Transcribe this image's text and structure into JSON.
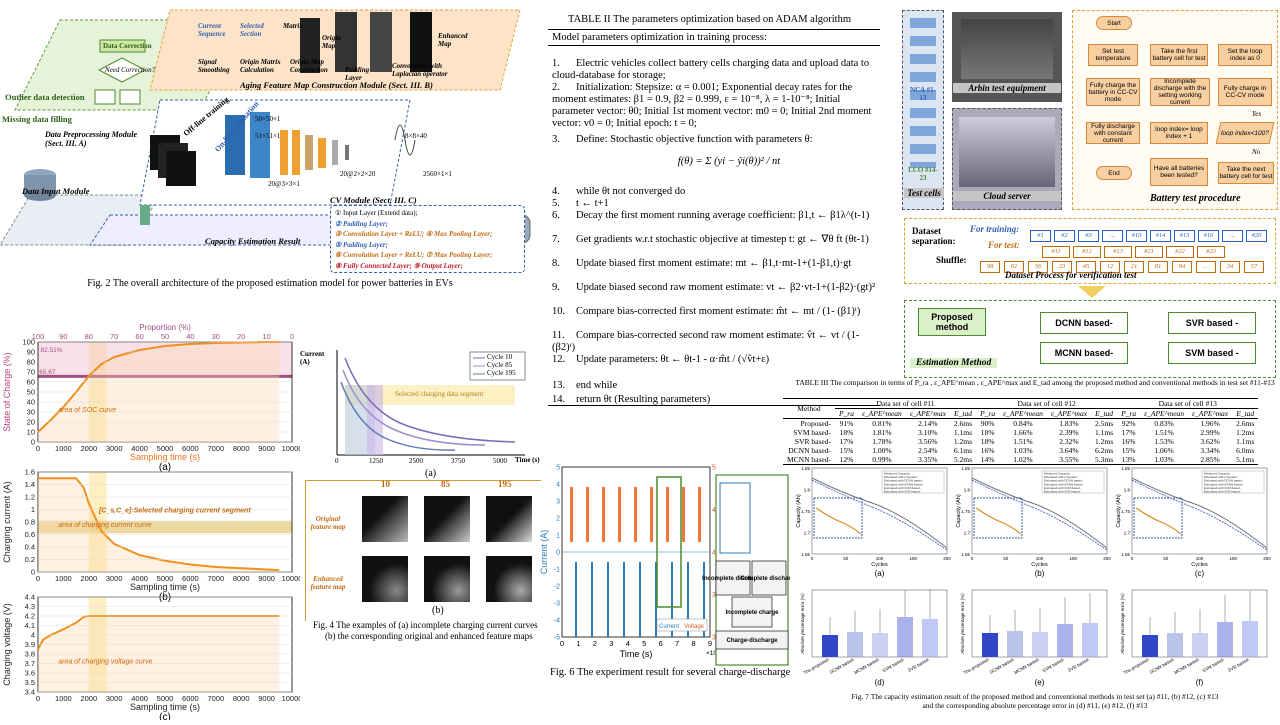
{
  "fig2": {
    "caption": "Fig. 2 The overall architecture of the proposed estimation model for power batteries in EVs",
    "labels": {
      "data_correction": "Data Correction",
      "need_correction": "Need Correction?",
      "y": "Y",
      "n": "N",
      "outlier": "Outlier data detection",
      "missing": "Missing data filling",
      "preprocess": "Data Preprocessing Module (Sect. III. A)",
      "input": "Data Input Module",
      "aging": "Aging Feature Map Construction Module (Sect. III. B)",
      "cv": "CV Module (Sect. III. C)",
      "capacity": "Capacity Estimation Result",
      "offline": "Off-line training",
      "online": "On-line estimation",
      "current_seq": "Current Sequence",
      "selected_sec": "Selected Section",
      "matrix": "Matrix",
      "origin_map": "Origin Map",
      "enhanced_map": "Enhanced Map",
      "signal_smooth": "Signal Smoothing",
      "origin_calc": "Origin Matrix Calculation",
      "origin_map_con": "Origin Map Construction",
      "padding": "Padding Layer",
      "conv_lap": "Convolution with Laplacian operator",
      "dim1": "50×50×1",
      "dim2": "51×51×1",
      "dim3": "20@3×3×1",
      "dim4": "20@2×2×20",
      "dim5": "8×8×40",
      "dim6": "2560×1×1"
    },
    "legend": [
      "① Input Layer (Extend data);",
      "② Padding Layer;",
      "③ Convolution Layer + ReLU;   ④ Max Pooling Layer;",
      "⑤ Padding Layer;",
      "⑥ Convolution Layer + ReLU;   ⑦ Max Pooling Layer;",
      "⑧ Fully Connected Layer;   ⑨ Output Layer;"
    ]
  },
  "fig3": {
    "sub_a": {
      "ylabel": "State of Charge (%)",
      "xlabel": "Sampling time (s)",
      "top_axis": "Proportion (%)",
      "annot1": "82.51%",
      "annot2": "65.67",
      "area": "area of SOC curve",
      "caption": "(a)"
    },
    "sub_b": {
      "ylabel": "Charging current (A)",
      "xlabel": "Sampling time (s)",
      "annot": "[C_s,C_e]:Selected charging current segment",
      "area": "area of charging current curve",
      "caption": "(b)"
    },
    "sub_c": {
      "ylabel": "Charging voltage (V)",
      "xlabel": "Sampling time (s)",
      "area": "area of charging voltage curve",
      "caption": "(c)"
    }
  },
  "chart_data": [
    {
      "type": "line",
      "title": "",
      "xlabel": "Sampling time (s)",
      "ylabel": "State of Charge (%)",
      "xlim": [
        0,
        10000
      ],
      "ylim": [
        0,
        100
      ],
      "x": [
        0,
        500,
        1000,
        1500,
        2000,
        2500,
        3000,
        4000,
        5000,
        6000,
        7000,
        8000,
        9000,
        9500
      ],
      "series": [
        {
          "values": [
            10,
            22,
            35,
            50,
            66,
            78,
            85,
            92,
            96,
            98,
            99,
            99.5,
            100,
            100
          ]
        }
      ],
      "xticks": [
        0,
        1000,
        2000,
        3000,
        4000,
        5000,
        6000,
        7000,
        8000,
        9000,
        10000
      ],
      "yticks": [
        0,
        10,
        20,
        30,
        40,
        50,
        60,
        70,
        80,
        90,
        100
      ],
      "top_ticks": [
        100,
        90,
        80,
        70,
        60,
        50,
        40,
        30,
        20,
        10,
        0
      ]
    },
    {
      "type": "line",
      "title": "",
      "xlabel": "Sampling time (s)",
      "ylabel": "Charging current (A)",
      "xlim": [
        0,
        10000
      ],
      "ylim": [
        0,
        1.6
      ],
      "x": [
        0,
        1500,
        1800,
        2000,
        2500,
        3000,
        4000,
        5000,
        6000,
        7000,
        8000,
        9000,
        9500
      ],
      "series": [
        {
          "values": [
            1.5,
            1.5,
            1.35,
            1.1,
            0.65,
            0.45,
            0.27,
            0.18,
            0.12,
            0.08,
            0.06,
            0.04,
            0.03
          ]
        }
      ],
      "xticks": [
        0,
        1000,
        2000,
        3000,
        4000,
        5000,
        6000,
        7000,
        8000,
        9000,
        10000
      ],
      "yticks": [
        0,
        0.2,
        0.4,
        0.6,
        0.8,
        1,
        1.2,
        1.4,
        1.6
      ]
    },
    {
      "type": "line",
      "title": "",
      "xlabel": "Sampling time (s)",
      "ylabel": "Charging voltage (V)",
      "xlim": [
        0,
        10000
      ],
      "ylim": [
        3.4,
        4.4
      ],
      "x": [
        0,
        200,
        500,
        1000,
        1500,
        1800,
        2000,
        3000,
        5000,
        7000,
        9500
      ],
      "series": [
        {
          "values": [
            3.85,
            3.95,
            4.0,
            4.06,
            4.13,
            4.19,
            4.2,
            4.2,
            4.2,
            4.2,
            4.2
          ]
        }
      ],
      "xticks": [
        0,
        1000,
        2000,
        3000,
        4000,
        5000,
        6000,
        7000,
        8000,
        9000,
        10000
      ],
      "yticks": [
        3.4,
        3.5,
        3.6,
        3.7,
        3.8,
        3.9,
        4.0,
        4.1,
        4.2,
        4.3,
        4.4
      ]
    },
    {
      "type": "line",
      "title": "",
      "xlabel": "Time (s)",
      "ylabel": "Current (A)",
      "xticks": [
        0,
        1250,
        2500,
        3750,
        5000
      ],
      "legend": [
        "Cycle 10",
        "Cycle 85",
        "Cycle 195"
      ],
      "annot": "Selected charging data segment"
    },
    {
      "type": "table",
      "title": "TABLE III The comparison in terms of P_ra, ε_APE^mean, ε_APE^max and E_tad among the proposed method and conventional methods in test set #11-#13",
      "columns": [
        "Method",
        "P_ra",
        "ε_APE^mean",
        "ε_APE^max",
        "E_tad"
      ],
      "groups": [
        "Data set of cell #11",
        "Data set of cell #12",
        "Data set of cell #13"
      ]
    }
  ],
  "fig4": {
    "caption1": "Fig. 4 The examples of (a) incomplete charging current curves",
    "caption2": "(b) the corresponding original and enhanced feature maps",
    "sub_a": "(a)",
    "sub_b": "(b)",
    "cols": [
      "10",
      "85",
      "195"
    ],
    "row1": "Original feature map",
    "row2": "Enhanced feature map",
    "cur_label": "Current (A)",
    "time_label": "Time (s)"
  },
  "table2": {
    "title": "TABLE II The parameters optimization based on ADAM algorithm",
    "header": "Model parameters optimization in training process:",
    "lines": [
      {
        "n": "1.",
        "t": "Electric vehicles collect battery cells charging data and upload data to cloud-database for storage;"
      },
      {
        "n": "2.",
        "t": "Initialization: Stepsize: α = 0.001; Exponential decay rates for the moment estimates: β1 = 0.9, β2 = 0.999, ε = 10⁻⁸, λ = 1-10⁻⁸; Initial parameter vector: θ0; Initial 1st moment vector: m0 = 0; Initial 2nd moment vector: v0 = 0; Initial epoch: t = 0;"
      },
      {
        "n": "3.",
        "t": "Define:   Stochastic objective function with parameters θ:"
      },
      {
        "n": "",
        "t": "f(θ) = Σ (yi − ŷi(θ))² / nt"
      },
      {
        "n": "4.",
        "t": "while θt not converged do"
      },
      {
        "n": "5.",
        "t": "t ← t+1"
      },
      {
        "n": "6.",
        "t": "Decay the first moment running average coefficient: β1,t ← β1λ^(t-1)"
      },
      {
        "n": "7.",
        "t": "Get gradients w.r.t stochastic objective at timestep t: gt ← ∇θ ft (θt-1)"
      },
      {
        "n": "8.",
        "t": "Update biased first moment estimate: mt ← β1,t·mt-1+(1-β1,t)·gt"
      },
      {
        "n": "9.",
        "t": "Update biased second raw moment estimate: vt ← β2·vt-1+(1-β2)·(gt)²"
      },
      {
        "n": "10.",
        "t": "Compare bias-corrected first moment estimate: m̂t ← mt / (1- (β1)ᵗ)"
      },
      {
        "n": "11.",
        "t": "Compare bias-corrected second raw moment estimate: v̂t ← vt / (1- (β2)ᵗ)"
      },
      {
        "n": "12.",
        "t": "Update parameters: θt ← θt-1 - α·m̂t / (√v̂t+ε)"
      },
      {
        "n": "13.",
        "t": "end while"
      },
      {
        "n": "14.",
        "t": "return θt (Resulting parameters)"
      }
    ]
  },
  "fig5": {
    "test_cells": "Test cells",
    "nca": "NCA #1-13",
    "lco": "LCO #14-23",
    "arbin": "Arbin test equipment",
    "cloud": "Cloud server",
    "procedure": "Battery test procedure",
    "flow": {
      "start": "Start",
      "set_temp": "Set test temperature",
      "take_first": "Take the first battery cell for test",
      "set_loop": "Set the loop index as 0",
      "fully_charge_cc": "Fully charge the battery in CC-CV mode",
      "incomplete": "Incomplete discharge with the setting working current",
      "fully_charge2": "Fully charge in CC-CV mode",
      "fully_discharge": "Fully discharge with constant current",
      "loop_inc": "loop index= loop index + 1",
      "loop_check": "loop index<100?",
      "all_tested": "Have all batteries been tested?",
      "take_next": "Take the next battery cell for test",
      "end": "End",
      "yes": "Yes",
      "no": "No"
    },
    "dataset_sep": "Dataset separation:",
    "for_training": "For training:",
    "for_test": "For test:",
    "shuffle": "Shuffle:",
    "train_cells": [
      "#1",
      "#2",
      "#3",
      "…",
      "#10",
      "#14",
      "#15",
      "#16",
      "…",
      "#20"
    ],
    "test_cells_list": [
      "#11",
      "#12",
      "#13",
      "#21",
      "#22",
      "#23"
    ],
    "shuffle_cells": [
      "98",
      "62",
      "56",
      "23",
      "45",
      "12",
      "21",
      "81",
      "94",
      "…",
      "34",
      "57"
    ],
    "dataset_process": "Dataset Process for verification test",
    "methods": [
      "Proposed method",
      "DCNN based-",
      "SVR based -",
      "MCNN based-",
      "SVM based -"
    ],
    "estimation": "Estimation Method"
  },
  "fig6": {
    "caption": "Fig. 6 The experiment result for several charge-discharge cycle",
    "ylabel_l": "Current (A)",
    "ylabel_r": "Voltage (V)",
    "xlabel": "Time (s)",
    "x_exp": "×10⁴",
    "xticks": [
      "0",
      "1",
      "2",
      "3",
      "4",
      "5",
      "6",
      "7",
      "8",
      "9"
    ],
    "yticks_l": [
      "-5",
      "-4",
      "-3",
      "-2",
      "-1",
      "0",
      "1",
      "2",
      "3",
      "4",
      "5"
    ],
    "yticks_r": [
      "3",
      "3.5",
      "4",
      "4.5",
      "5"
    ],
    "legend": [
      "Current",
      "Voltage"
    ],
    "annots": [
      "Incomplete discharge",
      "Complete discharge",
      "Incomplete charge",
      "Charge-discharge"
    ]
  },
  "table3": {
    "title": "TABLE III The comparison in terms of P_ra , ε_APE^mean , ε_APE^max and E_tad among the proposed method and conventional methods in test set #11-#13",
    "groups": [
      "Data set of cell #11",
      "Data set of cell #12",
      "Data set of cell #13"
    ],
    "col_method": "Method",
    "rows": [
      {
        "m": "Proposed-",
        "v": [
          "91%",
          "0.81%",
          "2.14%",
          "2.6ms",
          "90%",
          "0.84%",
          "1.83%",
          "2.5ms",
          "92%",
          "0.83%",
          "1.96%",
          "2.6ms"
        ]
      },
      {
        "m": "SVM based-",
        "v": [
          "18%",
          "1.81%",
          "3.10%",
          "1.1ms",
          "18%",
          "1.66%",
          "2.39%",
          "1.1ms",
          "17%",
          "1.51%",
          "2.99%",
          "1.2ms"
        ]
      },
      {
        "m": "SVR based-",
        "v": [
          "17%",
          "1.78%",
          "3.56%",
          "1.2ms",
          "18%",
          "1.51%",
          "2.32%",
          "1.2ms",
          "16%",
          "1.53%",
          "3.62%",
          "1.1ms"
        ]
      },
      {
        "m": "DCNN based-",
        "v": [
          "15%",
          "1.00%",
          "2.54%",
          "6.1ms",
          "16%",
          "1.03%",
          "3.64%",
          "6.2ms",
          "15%",
          "1.06%",
          "3.34%",
          "6.0ms"
        ]
      },
      {
        "m": "MCNN based-",
        "v": [
          "12%",
          "0.99%",
          "3.35%",
          "5.2ms",
          "14%",
          "1.02%",
          "3.55%",
          "5.3ms",
          "13%",
          "1.03%",
          "2.85%",
          "5.1ms"
        ]
      }
    ]
  },
  "fig7": {
    "caption1": "Fig. 7 The capacity estimation result of the proposed method and conventional methods in test set (a) #11, (b) #12, (c) #13",
    "caption2": "and the corresponding absolute percentage error in (d) #11, (e) #12, (f) #13",
    "subs": [
      "(a)",
      "(b)",
      "(c)",
      "(d)",
      "(e)",
      "(f)"
    ],
    "ylabel_top": "Capacity (Ah)",
    "xlabel_top": "Cycles",
    "ylabel_bottom": "Absolute percentage error (%)",
    "bar_labels": [
      "The proposed-",
      "DCNN based-",
      "MCNN based-",
      "SVM based-",
      "SVR based-"
    ],
    "legend": [
      "Measured Capacity",
      "Estimated with proposed",
      "Estimated with DCNN based-",
      "Estimated with MCNN based-",
      "Estimated with SVM based-",
      "Estimated with SVR based-"
    ],
    "yticks_top": [
      "1.65",
      "1.7",
      "1.75",
      "1.8",
      "1.85"
    ],
    "xticks_top": [
      "0",
      "50",
      "100",
      "150",
      "200"
    ]
  },
  "colors": {
    "orange": "#f0a030",
    "blue": "#2f5fb3",
    "green": "#4b8a2c",
    "pink": "#f6c2d2"
  }
}
